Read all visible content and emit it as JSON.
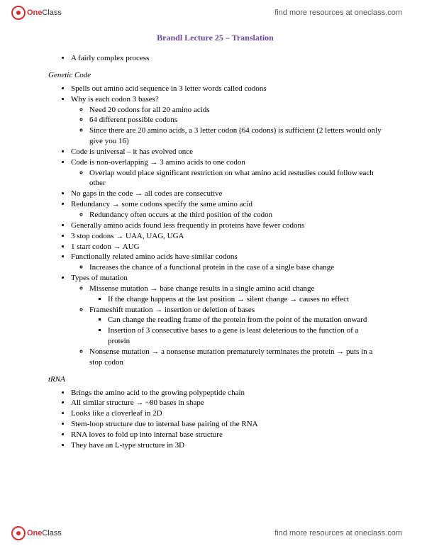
{
  "brand": {
    "one": "One",
    "class": "Class"
  },
  "resources_link": "find more resources at oneclass.com",
  "title": "Brandl Lecture 25 – Translation",
  "intro_item": "A fairly complex process",
  "section1_heading": "Genetic Code",
  "s1": {
    "i1": "Spells out amino acid sequence in 3 letter words called codons",
    "i2": "Why is each codon 3 bases?",
    "i2a": "Need 20 codons for all 20 amino acids",
    "i2b": "64 different possible codons",
    "i2c": "Since there are 20 amino acids, a 3 letter codon (64 codons) is sufficient (2 letters would only give you 16)",
    "i3": "Code is universal – it has evolved once",
    "i4": "Code is non-overlapping → 3 amino acids to one codon",
    "i4a": "Overlap would place significant restriction on what amino acid restudies could follow each other",
    "i5": "No gaps in the code → all codes are consecutive",
    "i6": "Redundancy → some codons specify the same amino acid",
    "i6a": "Redundancy often occurs at the third position of the codon",
    "i7": "Generally amino acids found less frequently in proteins have fewer codons",
    "i8": "3 stop codons → UAA, UAG, UGA",
    "i9": "1 start codon → AUG",
    "i10": "Functionally related amino acids have similar codons",
    "i10a": "Increases the chance of a functional protein in the case of a single base change",
    "i11": "Types of mutation",
    "i11a": "Missense mutation → base change results in a single amino acid change",
    "i11a1": "If the change happens at the last position → silent change → causes no effect",
    "i11b": "Frameshift mutation → insertion or deletion of bases",
    "i11b1": "Can change the reading frame of the protein from the point of the mutation onward",
    "i11b2": "Insertion of 3 consecutive bases to a gene is least deleterious to the function of a protein",
    "i11c": "Nonsense mutation → a nonsense mutation prematurely terminates the protein → puts in a stop codon"
  },
  "section2_heading": "tRNA",
  "s2": {
    "i1": "Brings the amino acid to the growing polypeptide chain",
    "i2": "All similar structure → ~80 bases in shape",
    "i3": "Looks like a cloverleaf in 2D",
    "i4": "Stem-loop structure due to internal base pairing of the RNA",
    "i5": "RNA loves to fold up into internal base structure",
    "i6": "They have an L-type structure in 3D"
  }
}
